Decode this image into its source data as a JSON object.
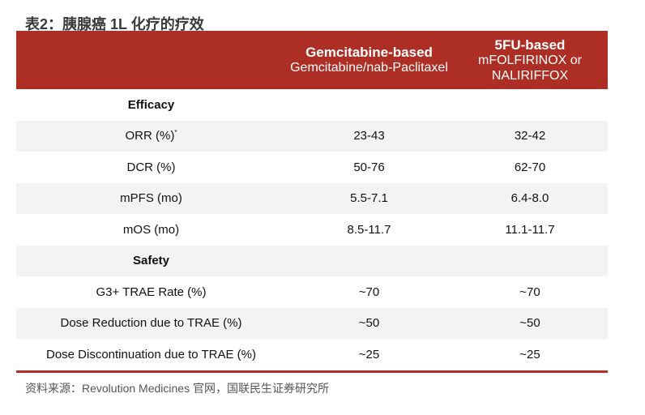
{
  "title": "表2：胰腺癌 1L 化疗的疗效",
  "header": {
    "col2_title": "Gemcitabine-based",
    "col2_sub": "Gemcitabine/nab-Paclitaxel",
    "col3_title": "5FU-based",
    "col3_sub": "mFOLFIRINOX or NALIRIFFOX"
  },
  "sections": {
    "efficacy": "Efficacy",
    "safety": "Safety"
  },
  "rows": [
    {
      "label": "ORR (%)",
      "note": "*",
      "c2": "23-43",
      "c3": "32-42"
    },
    {
      "label": "DCR (%)",
      "c2": "50-76",
      "c3": "62-70"
    },
    {
      "label": "mPFS (mo)",
      "c2": "5.5-7.1",
      "c3": "6.4-8.0"
    },
    {
      "label": "mOS (mo)",
      "c2": "8.5-11.7",
      "c3": "11.1-11.7"
    },
    {
      "label": "G3+ TRAE Rate (%)",
      "c2": "~70",
      "c3": "~70"
    },
    {
      "label": "Dose Reduction due to TRAE (%)",
      "c2": "~50",
      "c3": "~50"
    },
    {
      "label": "Dose Discontinuation due to TRAE (%)",
      "c2": "~25",
      "c3": "~25"
    }
  ],
  "source": "资料来源：Revolution Medicines 官网，国联民生证券研究所"
}
